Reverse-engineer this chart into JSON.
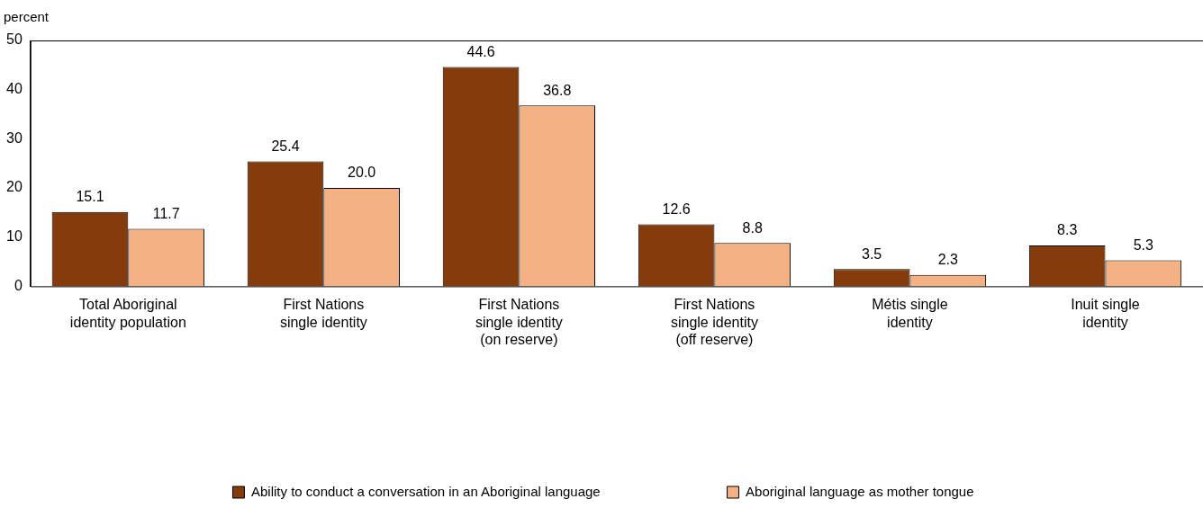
{
  "chart_data": {
    "type": "bar",
    "ylabel": "percent",
    "categories": [
      "Total Aboriginal identity population",
      "First Nations single identity",
      "First Nations single identity (on reserve)",
      "First Nations single identity (off reserve)",
      "Métis single identity",
      "Inuit single identity"
    ],
    "series": [
      {
        "name": "Ability to conduct a conversation in an Aboriginal language",
        "color": "#843c0c",
        "values": [
          15.1,
          25.4,
          44.6,
          12.6,
          3.5,
          8.3
        ]
      },
      {
        "name": "Aboriginal language as mother tongue",
        "color": "#f4b183",
        "values": [
          11.7,
          20.0,
          36.8,
          8.8,
          2.3,
          5.3
        ]
      }
    ],
    "value_labels": [
      [
        "15.1",
        "25.4",
        "44.6",
        "12.6",
        "3.5",
        "8.3"
      ],
      [
        "11.7",
        "20.0",
        "36.8",
        "8.8",
        "2.3",
        "5.3"
      ]
    ],
    "ylim": [
      0,
      50
    ],
    "yticks": [
      0,
      10,
      20,
      30,
      40,
      50
    ],
    "grid": false,
    "legend": "bottom"
  }
}
